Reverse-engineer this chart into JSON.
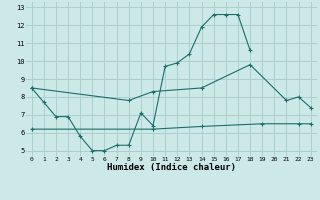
{
  "xlabel": "Humidex (Indice chaleur)",
  "xlim": [
    -0.5,
    23.5
  ],
  "ylim": [
    4.7,
    13.3
  ],
  "yticks": [
    5,
    6,
    7,
    8,
    9,
    10,
    11,
    12,
    13
  ],
  "xticks": [
    0,
    1,
    2,
    3,
    4,
    5,
    6,
    7,
    8,
    9,
    10,
    11,
    12,
    13,
    14,
    15,
    16,
    17,
    18,
    19,
    20,
    21,
    22,
    23
  ],
  "bg_color": "#cce9e8",
  "grid_color": "#aacfce",
  "line_color": "#1a6e68",
  "line1_x": [
    0,
    1,
    2,
    3,
    4,
    5,
    6,
    7,
    8,
    9,
    10,
    11,
    12,
    13,
    14,
    15,
    16,
    17,
    18
  ],
  "line1_y": [
    8.5,
    7.7,
    6.9,
    6.9,
    5.8,
    5.0,
    5.0,
    5.3,
    5.3,
    7.1,
    6.4,
    9.7,
    9.9,
    10.4,
    11.9,
    12.6,
    12.6,
    12.6,
    10.6
  ],
  "line2_x": [
    0,
    8,
    10,
    14,
    18,
    21,
    22,
    23
  ],
  "line2_y": [
    8.5,
    7.8,
    8.3,
    8.5,
    9.8,
    7.8,
    8.0,
    7.4
  ],
  "line3_x": [
    0,
    10,
    14,
    19,
    22,
    23
  ],
  "line3_y": [
    6.2,
    6.2,
    6.35,
    6.5,
    6.5,
    6.5
  ]
}
